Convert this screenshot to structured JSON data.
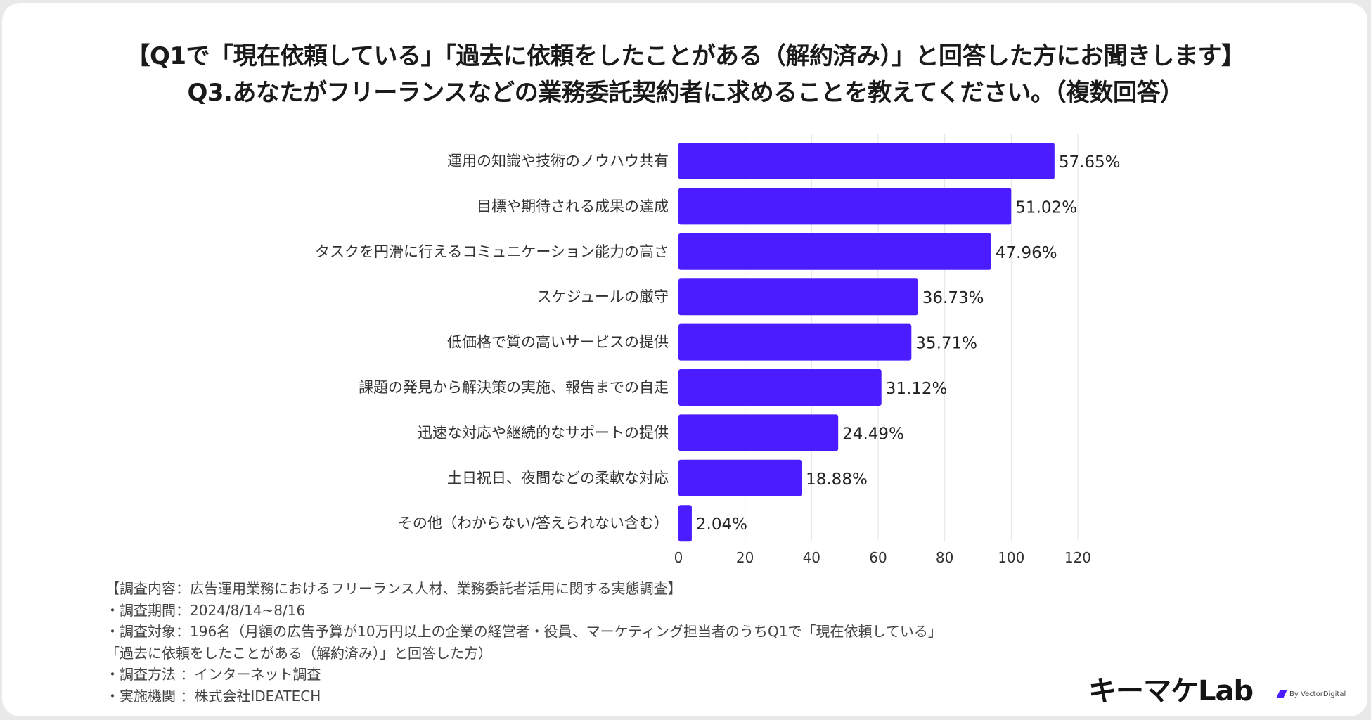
{
  "colors": {
    "bar": "#4a1cff",
    "background": "#ffffff",
    "grid": "#e3e3e3",
    "accent": "#4a1cff"
  },
  "title_line1": "【Q1で「現在依頼している」「過去に依頼をしたことがある（解約済み）」と回答した方にお聞きします】",
  "title_line2": "Q3.あなたがフリーランスなどの業務委託契約者に求めることを教えてください。（複数回答）",
  "chart_data": {
    "type": "bar",
    "orientation": "horizontal",
    "title": "",
    "xlabel": "",
    "ylabel": "",
    "categories": [
      "運用の知識や技術のノウハウ共有",
      "目標や期待される成果の達成",
      "タスクを円滑に行えるコミュニケーション能力の高さ",
      "スケジュールの厳守",
      "低価格で質の高いサービスの提供",
      "課題の発見から解決策の実施、報告までの自走",
      "迅速な対応や継続的なサポートの提供",
      "土日祝日、夜間などの柔軟な対応",
      "その他（わからない/答えられない含む）"
    ],
    "values": [
      113,
      100,
      94,
      72,
      70,
      61,
      48,
      37,
      4
    ],
    "value_labels": [
      "57.65%",
      "51.02%",
      "47.96%",
      "36.73%",
      "35.71%",
      "31.12%",
      "24.49%",
      "18.88%",
      "2.04%"
    ],
    "xlim": [
      0,
      120
    ],
    "xticks": [
      "0",
      "20",
      "40",
      "60",
      "80",
      "100",
      "120"
    ],
    "grid": true,
    "legend": "none"
  },
  "notes": [
    "【調査内容：広告運用業務におけるフリーランス人材、業務委託者活用に関する実態調査】",
    "・調査期間：2024/8/14~8/16",
    "・調査対象：196名（月額の広告予算が10万円以上の企業の経営者・役員、マーケティング担当者のうちQ1で「現在依頼している」",
    "「過去に依頼をしたことがある（解約済み）」と回答した方）",
    "・調査方法 ：インターネット調査",
    "・実施機関 ：株式会社IDEATECH"
  ],
  "logo": {
    "text": "キーマケLab",
    "byline": "By VectorDigital"
  }
}
